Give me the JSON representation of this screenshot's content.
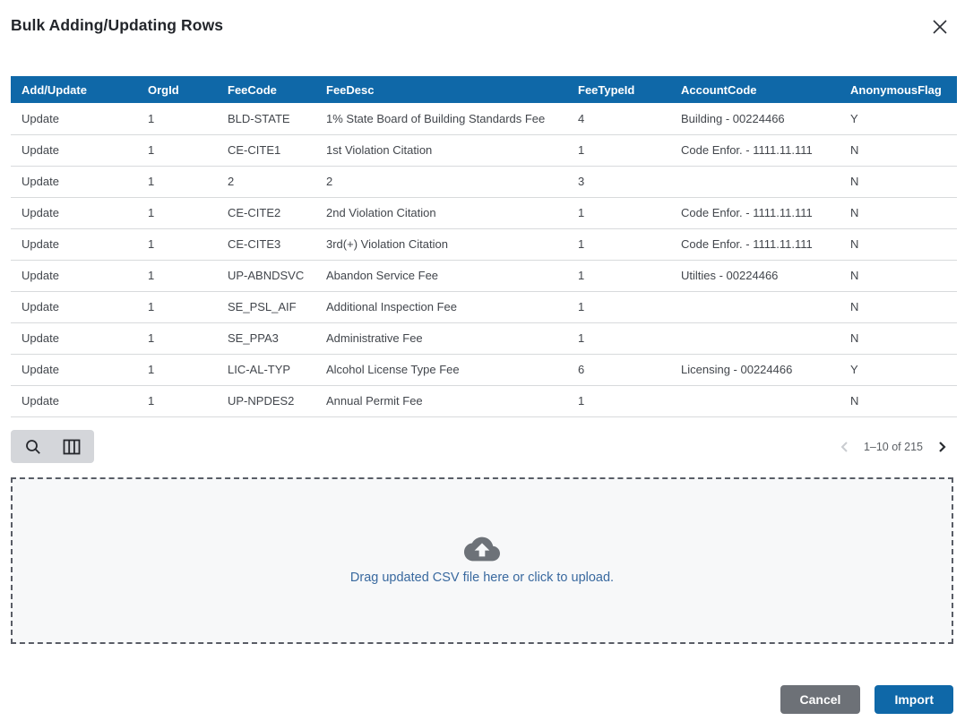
{
  "dialog": {
    "title": "Bulk Adding/Updating Rows",
    "close_icon": "close-icon"
  },
  "colors": {
    "header_blue": "#0f68a8",
    "import_blue": "#0f68a8",
    "cancel_gray": "#6d7177",
    "link_blue": "#39699f",
    "cloud_gray": "#6d7278"
  },
  "table": {
    "columns": [
      "Add/Update",
      "OrgId",
      "FeeCode",
      "FeeDesc",
      "FeeTypeId",
      "AccountCode",
      "AnonymousFlag"
    ],
    "rows": [
      [
        "Update",
        "1",
        "BLD-STATE",
        "1% State Board of Building Standards Fee",
        "4",
        "Building - 00224466",
        "Y"
      ],
      [
        "Update",
        "1",
        "CE-CITE1",
        "1st Violation Citation",
        "1",
        "Code Enfor. - 1111.11.111",
        "N"
      ],
      [
        "Update",
        "1",
        "2",
        "2",
        "3",
        "",
        "N"
      ],
      [
        "Update",
        "1",
        "CE-CITE2",
        "2nd Violation Citation",
        "1",
        "Code Enfor. - 1111.11.111",
        "N"
      ],
      [
        "Update",
        "1",
        "CE-CITE3",
        "3rd(+) Violation Citation",
        "1",
        "Code Enfor. - 1111.11.111",
        "N"
      ],
      [
        "Update",
        "1",
        "UP-ABNDSVC",
        "Abandon Service Fee",
        "1",
        "Utilties - 00224466",
        "N"
      ],
      [
        "Update",
        "1",
        "SE_PSL_AIF",
        "Additional Inspection Fee",
        "1",
        "",
        "N"
      ],
      [
        "Update",
        "1",
        "SE_PPA3",
        "Administrative Fee",
        "1",
        "",
        "N"
      ],
      [
        "Update",
        "1",
        "LIC-AL-TYP",
        "Alcohol License Type Fee",
        "6",
        "Licensing - 00224466",
        "Y"
      ],
      [
        "Update",
        "1",
        "UP-NPDES2",
        "Annual Permit Fee",
        "1",
        "",
        "N"
      ]
    ]
  },
  "toolbar": {
    "icons": [
      "search-icon",
      "columns-icon"
    ]
  },
  "pagination": {
    "range_label": "1–10 of 215",
    "prev_enabled": false,
    "next_enabled": true
  },
  "dropzone": {
    "label": "Drag updated CSV file here or click to upload.",
    "icon": "cloud-upload-icon"
  },
  "footer": {
    "cancel_label": "Cancel",
    "import_label": "Import"
  }
}
